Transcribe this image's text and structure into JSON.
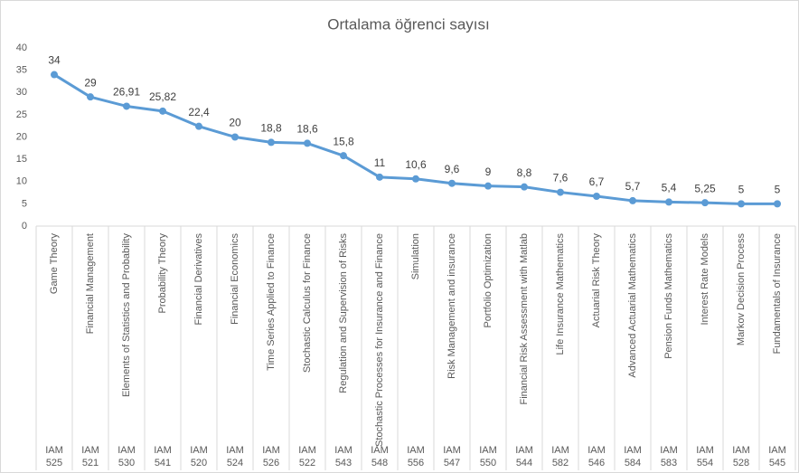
{
  "chart_data": {
    "type": "line",
    "title": "Ortalama öğrenci sayısı",
    "categories": [
      "Game Theory",
      "Financial Management",
      "Elements of Statistics and Probability",
      "Probability Theory",
      "Financial Derivatives",
      "Financial Economics",
      "Time Series Applied to Finance",
      "Stochastic Calculus for Finance",
      "Regulation and Supervision of Risks",
      "Stochastic Processes for Insurance and Finance",
      "Simulation",
      "Risk Management and insurance",
      "Portfolio Optimization",
      "Financial Risk Assessment with Matlab",
      "Life Insurance Mathematics",
      "Actuarial Risk Theory",
      "Advanced Actuarial Mathematics",
      "Pension Funds Mathematics",
      "Interest Rate Models",
      "Markov Decision Process",
      "Fundamentals of Insurance"
    ],
    "codes": [
      "IAM 525",
      "IAM 521",
      "IAM 530",
      "IAM 541",
      "IAM 520",
      "IAM 524",
      "IAM 526",
      "IAM 522",
      "IAM 543",
      "IAM 548",
      "IAM 556",
      "IAM 547",
      "IAM 550",
      "IAM 544",
      "IAM 582",
      "IAM 546",
      "IAM 584",
      "IAM 583",
      "IAM 554",
      "IAM 528",
      "IAM 545"
    ],
    "values": [
      34,
      29,
      26.91,
      25.82,
      22.4,
      20,
      18.8,
      18.6,
      15.8,
      11,
      10.6,
      9.6,
      9,
      8.8,
      7.6,
      6.7,
      5.7,
      5.4,
      5.25,
      5,
      5
    ],
    "value_labels": [
      "34",
      "29",
      "26,91",
      "25,82",
      "22,4",
      "20",
      "18,8",
      "18,6",
      "15,8",
      "11",
      "10,6",
      "9,6",
      "9",
      "8,8",
      "7,6",
      "6,7",
      "5,7",
      "5,4",
      "5,25",
      "5",
      "5"
    ],
    "color": "#5b9bd5",
    "ylim": [
      0,
      40
    ],
    "yticks": [
      0,
      5,
      10,
      15,
      20,
      25,
      30,
      35,
      40
    ],
    "grid": false
  }
}
